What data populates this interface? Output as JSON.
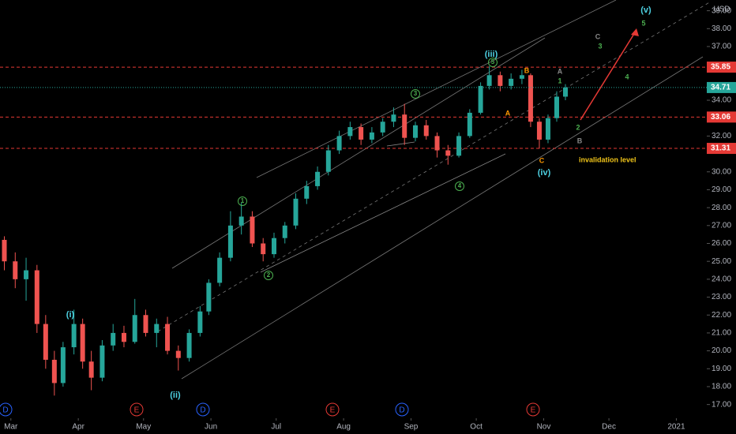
{
  "chart_data": {
    "type": "candlestick",
    "currency": "USD",
    "x": [
      -3,
      2,
      7,
      12,
      16,
      20,
      24,
      29,
      33,
      37,
      42,
      47,
      52,
      57,
      62,
      67,
      72,
      77,
      82,
      87,
      91,
      96,
      101,
      106,
      111,
      116,
      121,
      126,
      131,
      136,
      141,
      146,
      151,
      156,
      161,
      166,
      171,
      176,
      181,
      186,
      191,
      196,
      201,
      206,
      211,
      216,
      220,
      225,
      230,
      235,
      239,
      243,
      247,
      251,
      255
    ],
    "open": [
      26.2,
      25.0,
      24.0,
      24.5,
      21.5,
      19.5,
      18.2,
      20.2,
      21.5,
      19.4,
      18.5,
      20.3,
      21.0,
      20.5,
      22.0,
      21.0,
      21.5,
      20.0,
      19.6,
      21.0,
      22.2,
      23.8,
      25.2,
      27.0,
      27.5,
      26.0,
      25.4,
      26.3,
      27.0,
      28.5,
      29.2,
      30.0,
      31.2,
      32.0,
      32.5,
      31.8,
      32.2,
      32.8,
      33.2,
      31.9,
      32.6,
      32.0,
      31.2,
      30.9,
      32.0,
      33.3,
      34.8,
      35.4,
      34.8,
      35.2,
      35.4,
      32.8,
      31.8,
      33.0,
      34.2
    ],
    "high": [
      26.4,
      25.5,
      25.2,
      24.8,
      22.0,
      20.0,
      20.5,
      22.3,
      21.8,
      20.0,
      20.6,
      21.5,
      21.4,
      22.9,
      22.3,
      21.8,
      21.9,
      20.3,
      21.2,
      22.5,
      24.0,
      25.5,
      27.8,
      28.3,
      27.8,
      26.3,
      26.6,
      27.2,
      28.8,
      29.5,
      30.3,
      31.5,
      32.3,
      32.8,
      32.7,
      32.5,
      33.0,
      33.6,
      33.8,
      32.8,
      32.9,
      32.2,
      31.5,
      32.2,
      33.5,
      35.0,
      35.9,
      35.6,
      35.5,
      35.7,
      35.5,
      33.0,
      33.2,
      34.5,
      34.9
    ],
    "low": [
      24.5,
      23.5,
      22.8,
      21.0,
      19.0,
      17.5,
      18.0,
      19.8,
      19.0,
      17.8,
      18.3,
      20.0,
      20.2,
      20.4,
      20.8,
      20.2,
      19.8,
      18.9,
      19.4,
      20.8,
      22.0,
      23.6,
      25.0,
      26.5,
      25.8,
      25.0,
      25.2,
      26.0,
      26.8,
      28.2,
      29.0,
      29.8,
      31.0,
      31.8,
      31.5,
      31.6,
      32.0,
      32.5,
      31.5,
      31.7,
      31.8,
      30.8,
      30.4,
      30.8,
      31.9,
      33.2,
      34.6,
      34.5,
      34.6,
      34.9,
      32.5,
      31.3,
      31.6,
      32.8,
      34.0
    ],
    "close": [
      25.0,
      24.0,
      24.5,
      21.5,
      19.5,
      18.2,
      20.2,
      21.5,
      19.4,
      18.5,
      20.3,
      21.0,
      20.5,
      22.0,
      21.0,
      21.5,
      20.0,
      19.6,
      21.0,
      22.2,
      23.8,
      25.2,
      27.0,
      27.5,
      26.0,
      25.4,
      26.3,
      27.0,
      28.5,
      29.2,
      30.0,
      31.2,
      32.0,
      32.5,
      31.8,
      32.2,
      32.8,
      33.2,
      31.9,
      32.6,
      32.0,
      31.2,
      30.9,
      32.0,
      33.3,
      34.8,
      35.4,
      34.8,
      35.2,
      35.4,
      32.8,
      31.8,
      33.0,
      34.2,
      34.71
    ],
    "up_color": "#26a69a",
    "down_color": "#ef5350",
    "xlim": [
      -5,
      320
    ],
    "xticks": [
      {
        "value": 0,
        "label": "Mar"
      },
      {
        "value": 31,
        "label": "Apr"
      },
      {
        "value": 61,
        "label": "May"
      },
      {
        "value": 92,
        "label": "Jun"
      },
      {
        "value": 122,
        "label": "Jul"
      },
      {
        "value": 153,
        "label": "Aug"
      },
      {
        "value": 184,
        "label": "Sep"
      },
      {
        "value": 214,
        "label": "Oct"
      },
      {
        "value": 245,
        "label": "Nov"
      },
      {
        "value": 275,
        "label": "Dec"
      },
      {
        "value": 306,
        "label": "2021"
      }
    ],
    "ylim": [
      16.5,
      39.6
    ],
    "yticks": [
      {
        "value": 17,
        "label": "17.00"
      },
      {
        "value": 18,
        "label": "18.00"
      },
      {
        "value": 19,
        "label": "19.00"
      },
      {
        "value": 20,
        "label": "20.00"
      },
      {
        "value": 21,
        "label": "21.00"
      },
      {
        "value": 22,
        "label": "22.00"
      },
      {
        "value": 23,
        "label": "23.00"
      },
      {
        "value": 24,
        "label": "24.00"
      },
      {
        "value": 25,
        "label": "25.00"
      },
      {
        "value": 26,
        "label": "26.00"
      },
      {
        "value": 27,
        "label": "27.00"
      },
      {
        "value": 28,
        "label": "28.00"
      },
      {
        "value": 29,
        "label": "29.00"
      },
      {
        "value": 30,
        "label": "30.00"
      },
      {
        "value": 32,
        "label": "32.00"
      },
      {
        "value": 34,
        "label": "34.00"
      },
      {
        "value": 37,
        "label": "37.00"
      },
      {
        "value": 38,
        "label": "38.00"
      },
      {
        "value": 39,
        "label": "39.00"
      }
    ],
    "levels": [
      35.85,
      33.06,
      31.31
    ],
    "level_color": "#e53935",
    "last_price": 34.71,
    "last_color": "#26a69a",
    "events": [
      "D",
      "E",
      "D",
      "E",
      "D",
      "E"
    ],
    "annotations": [
      "(i)",
      "(ii)",
      "(iii)",
      "(iv)",
      "(v)",
      "1",
      "2",
      "3",
      "4",
      "5",
      "A",
      "B",
      "C",
      "invalidation level",
      "1",
      "2",
      "3",
      "4",
      "5",
      "A",
      "B",
      "C"
    ]
  }
}
